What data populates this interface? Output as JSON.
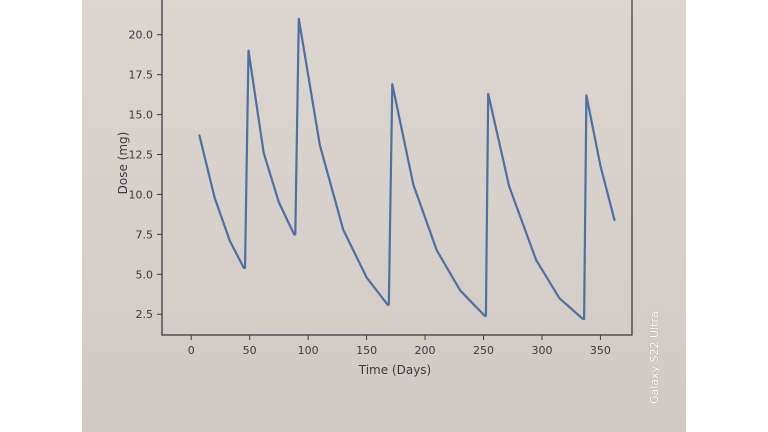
{
  "watermark": "Galaxy S22 Ultra",
  "chart_data": {
    "type": "line",
    "title": "",
    "xlabel": "Time (Days)",
    "ylabel": "Dose (mg)",
    "xlim": [
      -25,
      377
    ],
    "ylim": [
      1.2,
      22.3
    ],
    "xticks": [
      0,
      50,
      100,
      150,
      200,
      250,
      300,
      350
    ],
    "yticks": [
      2.5,
      5.0,
      7.5,
      10.0,
      12.5,
      15.0,
      17.5,
      20.0
    ],
    "xtick_labels": [
      "0",
      "50",
      "100",
      "150",
      "200",
      "250",
      "300",
      "350"
    ],
    "ytick_labels": [
      "2.5",
      "5.0",
      "7.5",
      "10.0",
      "12.5",
      "15.0",
      "17.5",
      "20.0"
    ],
    "grid": false,
    "line_color": "#4f6fa0",
    "series": [
      {
        "points": [
          [
            7,
            13.7
          ],
          [
            20,
            9.8
          ],
          [
            33,
            7.1
          ],
          [
            45,
            5.4
          ],
          [
            46,
            5.4
          ],
          [
            49,
            19.0
          ],
          [
            62,
            12.6
          ],
          [
            75,
            9.5
          ],
          [
            88,
            7.5
          ],
          [
            89,
            7.5
          ],
          [
            92,
            21.0
          ],
          [
            110,
            13.1
          ],
          [
            130,
            7.8
          ],
          [
            150,
            4.8
          ],
          [
            168,
            3.1
          ],
          [
            169,
            3.1
          ],
          [
            172,
            16.9
          ],
          [
            190,
            10.6
          ],
          [
            210,
            6.5
          ],
          [
            230,
            4.0
          ],
          [
            251,
            2.4
          ],
          [
            252,
            2.4
          ],
          [
            254,
            16.3
          ],
          [
            272,
            10.5
          ],
          [
            295,
            5.9
          ],
          [
            315,
            3.5
          ],
          [
            335,
            2.2
          ],
          [
            336,
            2.2
          ],
          [
            338,
            16.2
          ],
          [
            350,
            11.8
          ],
          [
            362,
            8.4
          ]
        ]
      }
    ]
  }
}
